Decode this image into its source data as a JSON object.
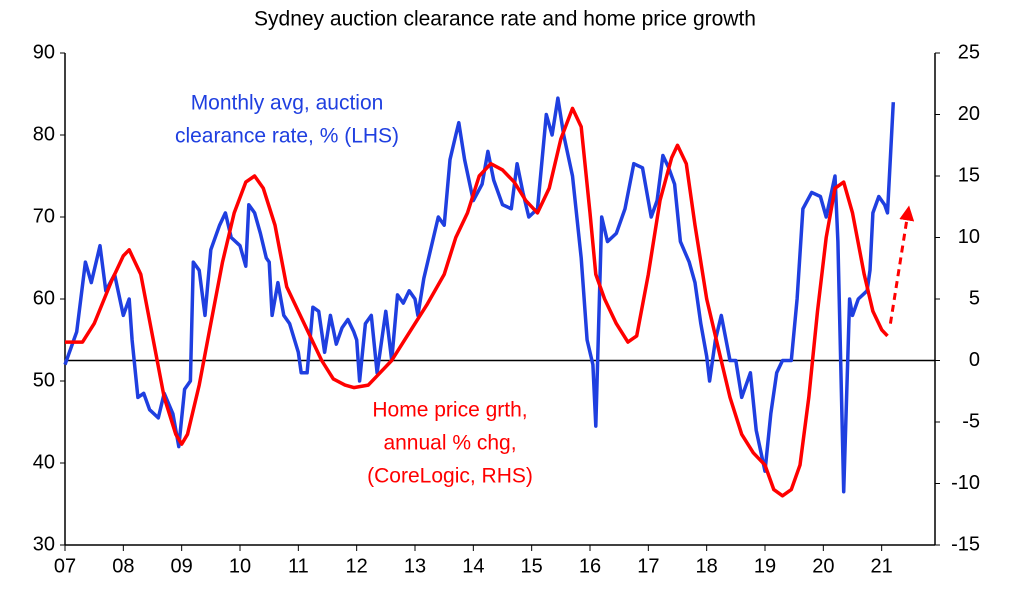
{
  "chart_data": {
    "type": "line",
    "title": "Sydney auction clearance rate and home price growth",
    "xlim": [
      2007,
      2022
    ],
    "xticks": [
      {
        "value": 2007,
        "label": "07"
      },
      {
        "value": 2008,
        "label": "08"
      },
      {
        "value": 2009,
        "label": "09"
      },
      {
        "value": 2010,
        "label": "10"
      },
      {
        "value": 2011,
        "label": "11"
      },
      {
        "value": 2012,
        "label": "12"
      },
      {
        "value": 2013,
        "label": "13"
      },
      {
        "value": 2014,
        "label": "14"
      },
      {
        "value": 2015,
        "label": "15"
      },
      {
        "value": 2016,
        "label": "16"
      },
      {
        "value": 2017,
        "label": "17"
      },
      {
        "value": 2018,
        "label": "18"
      },
      {
        "value": 2019,
        "label": "19"
      },
      {
        "value": 2020,
        "label": "20"
      },
      {
        "value": 2021,
        "label": "21"
      }
    ],
    "ylim": [
      30,
      90
    ],
    "yticks": [
      30,
      40,
      50,
      60,
      70,
      80,
      90
    ],
    "y2lim": [
      -15,
      25
    ],
    "y2ticks": [
      -15,
      -10,
      -5,
      0,
      5,
      10,
      15,
      20,
      25
    ],
    "reference_line": {
      "axis": "y2",
      "value": 0
    },
    "series": [
      {
        "label_lines": [
          "Monthly avg, auction",
          "clearance rate, % (LHS)"
        ],
        "color": "#1f3fe0",
        "axis": "y",
        "x": [
          2007.0,
          2007.2,
          2007.35,
          2007.45,
          2007.6,
          2007.7,
          2007.85,
          2008.0,
          2008.1,
          2008.15,
          2008.25,
          2008.35,
          2008.45,
          2008.6,
          2008.7,
          2008.85,
          2008.95,
          2009.05,
          2009.15,
          2009.2,
          2009.3,
          2009.4,
          2009.5,
          2009.65,
          2009.75,
          2009.85,
          2010.0,
          2010.1,
          2010.15,
          2010.25,
          2010.35,
          2010.45,
          2010.5,
          2010.55,
          2010.65,
          2010.75,
          2010.85,
          2011.0,
          2011.05,
          2011.15,
          2011.25,
          2011.35,
          2011.45,
          2011.55,
          2011.65,
          2011.75,
          2011.85,
          2011.95,
          2012.0,
          2012.05,
          2012.15,
          2012.25,
          2012.35,
          2012.5,
          2012.6,
          2012.7,
          2012.8,
          2012.9,
          2013.0,
          2013.05,
          2013.15,
          2013.3,
          2013.4,
          2013.5,
          2013.6,
          2013.7,
          2013.75,
          2013.85,
          2014.0,
          2014.15,
          2014.25,
          2014.35,
          2014.5,
          2014.65,
          2014.75,
          2014.85,
          2014.95,
          2015.1,
          2015.25,
          2015.35,
          2015.45,
          2015.55,
          2015.7,
          2015.85,
          2015.95,
          2016.05,
          2016.1,
          2016.2,
          2016.3,
          2016.45,
          2016.6,
          2016.75,
          2016.9,
          2017.05,
          2017.15,
          2017.25,
          2017.35,
          2017.45,
          2017.55,
          2017.7,
          2017.8,
          2017.9,
          2018.0,
          2018.05,
          2018.15,
          2018.25,
          2018.4,
          2018.5,
          2018.6,
          2018.75,
          2018.85,
          2019.0,
          2019.1,
          2019.2,
          2019.3,
          2019.45,
          2019.55,
          2019.65,
          2019.8,
          2019.95,
          2020.05,
          2020.2,
          2020.25,
          2020.35,
          2020.45,
          2020.5,
          2020.6,
          2020.75,
          2020.8,
          2020.85,
          2020.95,
          2021.05,
          2021.1,
          2021.2
        ],
        "values": [
          52,
          56,
          64.5,
          62,
          66.5,
          61,
          63,
          58,
          60,
          55,
          48,
          48.5,
          46.5,
          45.5,
          48.5,
          46,
          42,
          49,
          50,
          64.5,
          63.5,
          58,
          66,
          69,
          70.5,
          67.5,
          66.5,
          64,
          71.5,
          70.5,
          68,
          65,
          64.5,
          58,
          62,
          58,
          57,
          53.5,
          51,
          51,
          59,
          58.5,
          53.5,
          58,
          54.5,
          56.5,
          57.5,
          56,
          55,
          50,
          57,
          58,
          51,
          58.5,
          52.5,
          60.5,
          59.5,
          61,
          60,
          58,
          62.5,
          67,
          70,
          69,
          77,
          80,
          81.5,
          77,
          72,
          74,
          78,
          74.5,
          71.5,
          71,
          76.5,
          73,
          70,
          71,
          82.5,
          80,
          84.5,
          80,
          75,
          65,
          55,
          52,
          44.5,
          70,
          67,
          68,
          71,
          76.5,
          76,
          70,
          72,
          77.5,
          76,
          74,
          67,
          64.5,
          62,
          57,
          53,
          50,
          55,
          58,
          52.5,
          52.5,
          48,
          51,
          44,
          39,
          46,
          51,
          52.5,
          52.5,
          60,
          71,
          73,
          72.5,
          70,
          75,
          67,
          36.5,
          60,
          58,
          60,
          61,
          63.5,
          70.5,
          72.5,
          71.5,
          70.5,
          84
        ]
      },
      {
        "label_lines": [
          "Home price grth,",
          "annual % chg,",
          "(CoreLogic, RHS)"
        ],
        "color": "#ff0000",
        "axis": "y2",
        "x": [
          2007.0,
          2007.3,
          2007.5,
          2007.8,
          2008.0,
          2008.1,
          2008.3,
          2008.5,
          2008.7,
          2008.9,
          2009.0,
          2009.1,
          2009.3,
          2009.5,
          2009.7,
          2009.9,
          2010.1,
          2010.25,
          2010.4,
          2010.6,
          2010.8,
          2011.0,
          2011.2,
          2011.4,
          2011.6,
          2011.8,
          2011.95,
          2012.2,
          2012.4,
          2012.6,
          2012.8,
          2013.0,
          2013.2,
          2013.5,
          2013.7,
          2013.9,
          2014.1,
          2014.3,
          2014.5,
          2014.7,
          2014.9,
          2015.1,
          2015.3,
          2015.5,
          2015.7,
          2015.85,
          2016.0,
          2016.1,
          2016.25,
          2016.45,
          2016.65,
          2016.8,
          2017.0,
          2017.2,
          2017.4,
          2017.5,
          2017.65,
          2017.8,
          2018.0,
          2018.2,
          2018.4,
          2018.6,
          2018.8,
          2019.0,
          2019.15,
          2019.3,
          2019.45,
          2019.6,
          2019.75,
          2019.9,
          2020.05,
          2020.2,
          2020.35,
          2020.5,
          2020.7,
          2020.85,
          2021.0,
          2021.1
        ],
        "values": [
          1.5,
          1.5,
          3,
          6.5,
          8.5,
          9,
          7,
          2,
          -3,
          -6,
          -6.8,
          -6,
          -2,
          3,
          8,
          12,
          14.5,
          15,
          14,
          11,
          6,
          4,
          2,
          0,
          -1.5,
          -2,
          -2.2,
          -2,
          -1,
          0,
          1.5,
          3,
          4.5,
          7,
          10,
          12,
          15,
          16,
          15.5,
          14.5,
          13,
          12,
          14,
          18,
          20.5,
          19,
          12,
          7,
          5,
          3,
          1.5,
          2,
          7,
          13,
          16.5,
          17.5,
          16,
          11,
          5,
          1,
          -3,
          -6,
          -7.5,
          -8.5,
          -10.5,
          -11,
          -10.5,
          -8.5,
          -3,
          4,
          10,
          14,
          14.5,
          12,
          7,
          4,
          2.5,
          2
        ]
      }
    ],
    "projection": {
      "axis": "y2",
      "color": "#ff0000",
      "dashed": true,
      "x": [
        2021.15,
        2021.45
      ],
      "values": [
        3,
        12
      ]
    }
  }
}
